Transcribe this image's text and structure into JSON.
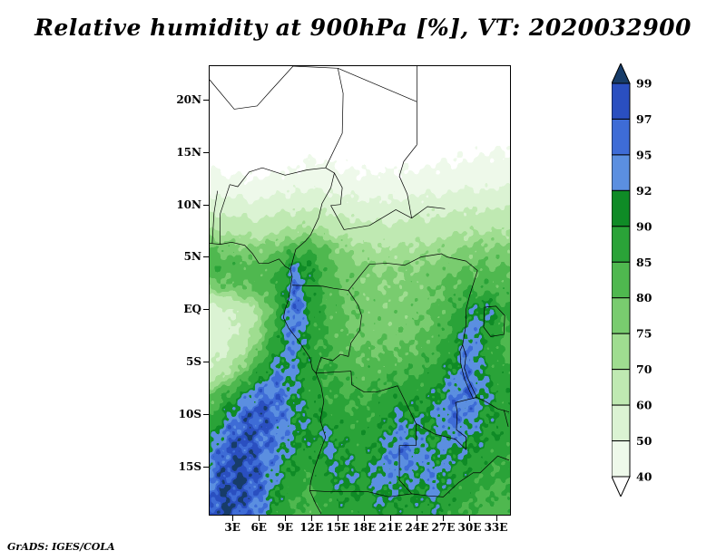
{
  "title": "Relative humidity at 900hPa [%], VT: 2020032900",
  "footer": "GrADS: IGES/COLA",
  "chart_data": {
    "type": "heatmap",
    "variable": "Relative humidity",
    "pressure_level": "900hPa",
    "units": "%",
    "valid_time": "2020032900",
    "lon_range": [
      0.4,
      34.6
    ],
    "lat_range": [
      23.2,
      -19.6
    ],
    "xticks": [
      {
        "label": "3E",
        "lon": 3
      },
      {
        "label": "6E",
        "lon": 6
      },
      {
        "label": "9E",
        "lon": 9
      },
      {
        "label": "12E",
        "lon": 12
      },
      {
        "label": "15E",
        "lon": 15
      },
      {
        "label": "18E",
        "lon": 18
      },
      {
        "label": "21E",
        "lon": 21
      },
      {
        "label": "24E",
        "lon": 24
      },
      {
        "label": "27E",
        "lon": 27
      },
      {
        "label": "30E",
        "lon": 30
      },
      {
        "label": "33E",
        "lon": 33
      }
    ],
    "yticks": [
      {
        "label": "20N",
        "lat": 20
      },
      {
        "label": "15N",
        "lat": 15
      },
      {
        "label": "10N",
        "lat": 10
      },
      {
        "label": "5N",
        "lat": 5
      },
      {
        "label": "EQ",
        "lat": 0
      },
      {
        "label": "5S",
        "lat": -5
      },
      {
        "label": "10S",
        "lat": -10
      },
      {
        "label": "15S",
        "lat": -15
      }
    ],
    "colorbar": {
      "labels_top_to_bottom": [
        "99",
        "97",
        "95",
        "92",
        "90",
        "85",
        "80",
        "75",
        "70",
        "60",
        "50",
        "40"
      ],
      "levels": [
        40,
        50,
        60,
        70,
        75,
        80,
        85,
        90,
        92,
        95,
        97,
        99
      ],
      "colors_bottom_to_top": [
        "#ffffff",
        "#eef9ea",
        "#dbf3d3",
        "#bfe9b2",
        "#9fdd90",
        "#79cc6f",
        "#4fb84f",
        "#2aa338",
        "#0f8b26",
        "#5b8fe0",
        "#3e6cd6",
        "#2a4fc0",
        "#173c69"
      ]
    },
    "grid": {
      "lons": [
        0,
        2,
        4,
        6,
        8,
        10,
        12,
        14,
        16,
        18,
        20,
        22,
        24,
        26,
        28,
        30,
        32,
        34
      ],
      "lats": [
        24,
        22,
        20,
        18,
        16,
        14,
        12,
        10,
        8,
        6,
        4,
        2,
        0,
        -2,
        -4,
        -6,
        -8,
        -10,
        -12,
        -14,
        -16,
        -18,
        -20
      ],
      "values": [
        [
          20,
          20,
          20,
          20,
          20,
          20,
          20,
          20,
          22,
          22,
          22,
          24,
          25,
          25,
          26,
          28,
          30,
          30
        ],
        [
          22,
          20,
          20,
          20,
          20,
          20,
          22,
          22,
          24,
          24,
          25,
          26,
          27,
          28,
          28,
          30,
          32,
          32
        ],
        [
          25,
          22,
          20,
          20,
          20,
          22,
          24,
          25,
          26,
          26,
          27,
          28,
          28,
          30,
          30,
          32,
          34,
          34
        ],
        [
          28,
          25,
          22,
          22,
          24,
          25,
          26,
          27,
          28,
          28,
          29,
          30,
          30,
          32,
          33,
          34,
          35,
          36
        ],
        [
          32,
          30,
          28,
          27,
          28,
          29,
          30,
          30,
          31,
          31,
          32,
          32,
          33,
          34,
          35,
          36,
          37,
          38
        ],
        [
          38,
          36,
          35,
          34,
          35,
          36,
          42,
          40,
          38,
          37,
          37,
          38,
          38,
          39,
          40,
          41,
          42,
          43
        ],
        [
          45,
          44,
          43,
          42,
          44,
          46,
          48,
          46,
          44,
          43,
          43,
          44,
          44,
          45,
          46,
          47,
          48,
          48
        ],
        [
          55,
          54,
          53,
          52,
          54,
          56,
          58,
          56,
          54,
          52,
          52,
          53,
          54,
          55,
          56,
          57,
          58,
          58
        ],
        [
          68,
          66,
          64,
          63,
          66,
          68,
          70,
          67,
          64,
          62,
          61,
          62,
          63,
          64,
          66,
          67,
          68,
          68
        ],
        [
          80,
          78,
          76,
          75,
          78,
          82,
          83,
          78,
          74,
          71,
          70,
          70,
          71,
          72,
          74,
          75,
          76,
          76
        ],
        [
          85,
          84,
          83,
          82,
          84,
          93,
          90,
          82,
          78,
          76,
          75,
          75,
          76,
          77,
          79,
          80,
          81,
          80
        ],
        [
          75,
          78,
          80,
          82,
          85,
          96,
          88,
          82,
          79,
          77,
          76,
          76,
          77,
          79,
          82,
          84,
          84,
          82
        ],
        [
          55,
          58,
          64,
          72,
          85,
          97,
          90,
          83,
          80,
          78,
          77,
          77,
          78,
          80,
          84,
          90,
          93,
          86
        ],
        [
          52,
          55,
          62,
          74,
          88,
          96,
          88,
          84,
          80,
          78,
          78,
          78,
          79,
          82,
          86,
          94,
          90,
          85
        ],
        [
          55,
          58,
          68,
          80,
          90,
          94,
          88,
          84,
          81,
          80,
          80,
          80,
          81,
          84,
          88,
          96,
          88,
          84
        ],
        [
          62,
          68,
          78,
          88,
          94,
          92,
          88,
          85,
          83,
          82,
          83,
          84,
          85,
          87,
          92,
          95,
          90,
          86
        ],
        [
          78,
          84,
          90,
          95,
          96,
          92,
          88,
          86,
          85,
          84,
          86,
          88,
          88,
          90,
          94,
          96,
          92,
          88
        ],
        [
          82,
          90,
          96,
          98,
          96,
          92,
          90,
          88,
          86,
          86,
          88,
          92,
          90,
          92,
          96,
          94,
          90,
          88
        ],
        [
          88,
          95,
          98,
          97,
          95,
          92,
          90,
          92,
          88,
          88,
          90,
          94,
          92,
          90,
          94,
          92,
          90,
          88
        ],
        [
          92,
          97,
          99,
          96,
          94,
          90,
          88,
          92,
          90,
          88,
          92,
          96,
          94,
          92,
          92,
          90,
          88,
          86
        ],
        [
          94,
          98,
          99,
          97,
          92,
          88,
          86,
          90,
          92,
          90,
          94,
          92,
          92,
          94,
          90,
          88,
          86,
          85
        ],
        [
          96,
          99,
          98,
          96,
          90,
          86,
          84,
          88,
          90,
          88,
          92,
          90,
          90,
          92,
          88,
          86,
          84,
          84
        ],
        [
          97,
          99,
          97,
          94,
          88,
          84,
          82,
          86,
          88,
          86,
          90,
          88,
          88,
          90,
          86,
          84,
          82,
          82
        ]
      ]
    },
    "map_outlines": [
      [
        [
          0.4,
          6.3
        ],
        [
          1.6,
          6.2
        ],
        [
          2.9,
          6.4
        ],
        [
          4.4,
          6.1
        ],
        [
          5.3,
          5.3
        ],
        [
          6.0,
          4.4
        ],
        [
          7.1,
          4.4
        ],
        [
          8.3,
          4.8
        ],
        [
          9.0,
          4.1
        ],
        [
          9.6,
          3.8
        ],
        [
          9.8,
          3.1
        ],
        [
          9.4,
          1.0
        ],
        [
          9.0,
          0.0
        ],
        [
          8.8,
          -0.8
        ],
        [
          9.4,
          -1.8
        ],
        [
          10.6,
          -3.1
        ],
        [
          11.8,
          -4.6
        ],
        [
          12.1,
          -5.7
        ],
        [
          12.5,
          -6.1
        ],
        [
          13.1,
          -7.4
        ],
        [
          13.4,
          -8.8
        ],
        [
          13.0,
          -10.6
        ],
        [
          13.6,
          -12.2
        ],
        [
          12.9,
          -13.8
        ],
        [
          12.3,
          -15.2
        ],
        [
          11.9,
          -16.5
        ],
        [
          11.8,
          -17.3
        ],
        [
          12.5,
          -18.6
        ],
        [
          13.1,
          -19.5
        ]
      ],
      [
        [
          1.6,
          6.2
        ],
        [
          1.6,
          9.1
        ],
        [
          2.7,
          11.9
        ]
      ],
      [
        [
          0.7,
          6.3
        ],
        [
          0.9,
          9.2
        ],
        [
          1.3,
          11.3
        ]
      ],
      [
        [
          2.7,
          11.9
        ],
        [
          3.6,
          11.7
        ],
        [
          4.9,
          13.1
        ],
        [
          6.4,
          13.5
        ],
        [
          9.0,
          12.8
        ],
        [
          11.5,
          13.3
        ],
        [
          13.6,
          13.5
        ]
      ],
      [
        [
          0.4,
          21.9
        ],
        [
          3.2,
          19.1
        ],
        [
          5.8,
          19.4
        ],
        [
          7.4,
          20.9
        ],
        [
          9.9,
          23.2
        ]
      ],
      [
        [
          9.9,
          23.2
        ],
        [
          15.0,
          23.0
        ]
      ],
      [
        [
          15.0,
          23.0
        ],
        [
          15.6,
          20.6
        ],
        [
          15.5,
          16.8
        ],
        [
          13.6,
          13.5
        ]
      ],
      [
        [
          15.0,
          23.0
        ],
        [
          24.0,
          19.8
        ]
      ],
      [
        [
          24.0,
          23.2
        ],
        [
          24.0,
          15.7
        ]
      ],
      [
        [
          24.0,
          15.7
        ],
        [
          22.5,
          14.1
        ],
        [
          22.0,
          12.7
        ],
        [
          22.9,
          11.0
        ],
        [
          23.4,
          8.7
        ]
      ],
      [
        [
          9.6,
          3.8
        ],
        [
          10.2,
          5.7
        ],
        [
          11.3,
          6.5
        ],
        [
          11.9,
          7.1
        ],
        [
          12.8,
          8.7
        ],
        [
          13.2,
          10.1
        ],
        [
          14.2,
          11.6
        ],
        [
          14.6,
          13.0
        ],
        [
          13.6,
          13.5
        ]
      ],
      [
        [
          14.6,
          13.0
        ],
        [
          15.5,
          11.6
        ],
        [
          15.3,
          10.0
        ],
        [
          14.2,
          9.9
        ],
        [
          15.7,
          7.6
        ],
        [
          18.6,
          8.0
        ],
        [
          21.6,
          9.5
        ],
        [
          23.4,
          8.7
        ],
        [
          25.2,
          9.8
        ],
        [
          27.2,
          9.6
        ]
      ],
      [
        [
          9.8,
          2.3
        ],
        [
          13.3,
          2.2
        ],
        [
          14.5,
          2.0
        ],
        [
          16.2,
          1.8
        ],
        [
          17.3,
          0.4
        ],
        [
          17.7,
          -0.6
        ],
        [
          17.5,
          -2.0
        ],
        [
          16.5,
          -3.2
        ],
        [
          16.2,
          -4.5
        ],
        [
          15.3,
          -4.3
        ],
        [
          14.4,
          -4.9
        ],
        [
          13.1,
          -4.6
        ],
        [
          12.5,
          -6.1
        ]
      ],
      [
        [
          16.2,
          1.8
        ],
        [
          17.9,
          3.6
        ],
        [
          18.6,
          4.3
        ],
        [
          20.6,
          4.4
        ],
        [
          22.6,
          4.2
        ],
        [
          24.5,
          5.0
        ],
        [
          26.8,
          5.3
        ],
        [
          27.4,
          5.0
        ],
        [
          29.6,
          4.6
        ],
        [
          30.9,
          3.7
        ]
      ],
      [
        [
          30.9,
          3.7
        ],
        [
          30.0,
          1.3
        ],
        [
          29.6,
          0.0
        ],
        [
          29.6,
          -1.4
        ],
        [
          29.2,
          -3.4
        ]
      ],
      [
        [
          31.7,
          0.2
        ],
        [
          33.0,
          0.3
        ],
        [
          34.0,
          -0.6
        ],
        [
          33.9,
          -2.4
        ],
        [
          32.4,
          -2.6
        ],
        [
          31.6,
          -1.7
        ],
        [
          31.7,
          0.2
        ]
      ],
      [
        [
          29.2,
          -3.4
        ],
        [
          29.6,
          -4.4
        ],
        [
          29.4,
          -5.6
        ],
        [
          29.8,
          -6.6
        ],
        [
          30.3,
          -7.5
        ],
        [
          30.8,
          -8.4
        ],
        [
          30.4,
          -8.5
        ],
        [
          29.9,
          -7.6
        ],
        [
          29.4,
          -6.6
        ],
        [
          29.0,
          -5.2
        ],
        [
          28.9,
          -4.0
        ],
        [
          29.2,
          -3.4
        ]
      ],
      [
        [
          12.5,
          -6.1
        ],
        [
          16.5,
          -5.9
        ],
        [
          16.6,
          -7.2
        ],
        [
          18.0,
          -7.9
        ],
        [
          19.4,
          -7.9
        ],
        [
          21.8,
          -7.3
        ],
        [
          23.9,
          -10.9
        ],
        [
          23.9,
          -13.0
        ],
        [
          22.0,
          -13.0
        ],
        [
          22.0,
          -16.3
        ],
        [
          23.4,
          -17.6
        ]
      ],
      [
        [
          23.9,
          -10.9
        ],
        [
          26.0,
          -11.9
        ],
        [
          28.4,
          -12.4
        ],
        [
          29.6,
          -13.4
        ],
        [
          29.6,
          -12.2
        ],
        [
          28.5,
          -11.5
        ],
        [
          28.6,
          -9.8
        ],
        [
          28.4,
          -8.9
        ],
        [
          30.8,
          -8.4
        ],
        [
          31.8,
          -8.8
        ],
        [
          33.2,
          -9.5
        ],
        [
          34.5,
          -9.8
        ]
      ],
      [
        [
          11.8,
          -17.3
        ],
        [
          13.9,
          -17.4
        ],
        [
          18.4,
          -17.4
        ],
        [
          20.8,
          -17.9
        ],
        [
          23.4,
          -17.6
        ],
        [
          25.3,
          -17.8
        ],
        [
          27.0,
          -17.9
        ],
        [
          28.8,
          -16.5
        ],
        [
          30.4,
          -15.6
        ],
        [
          31.2,
          -15.6
        ],
        [
          33.2,
          -14.0
        ],
        [
          34.5,
          -14.4
        ]
      ],
      [
        [
          33.9,
          -9.6
        ],
        [
          34.4,
          -11.2
        ]
      ]
    ]
  }
}
